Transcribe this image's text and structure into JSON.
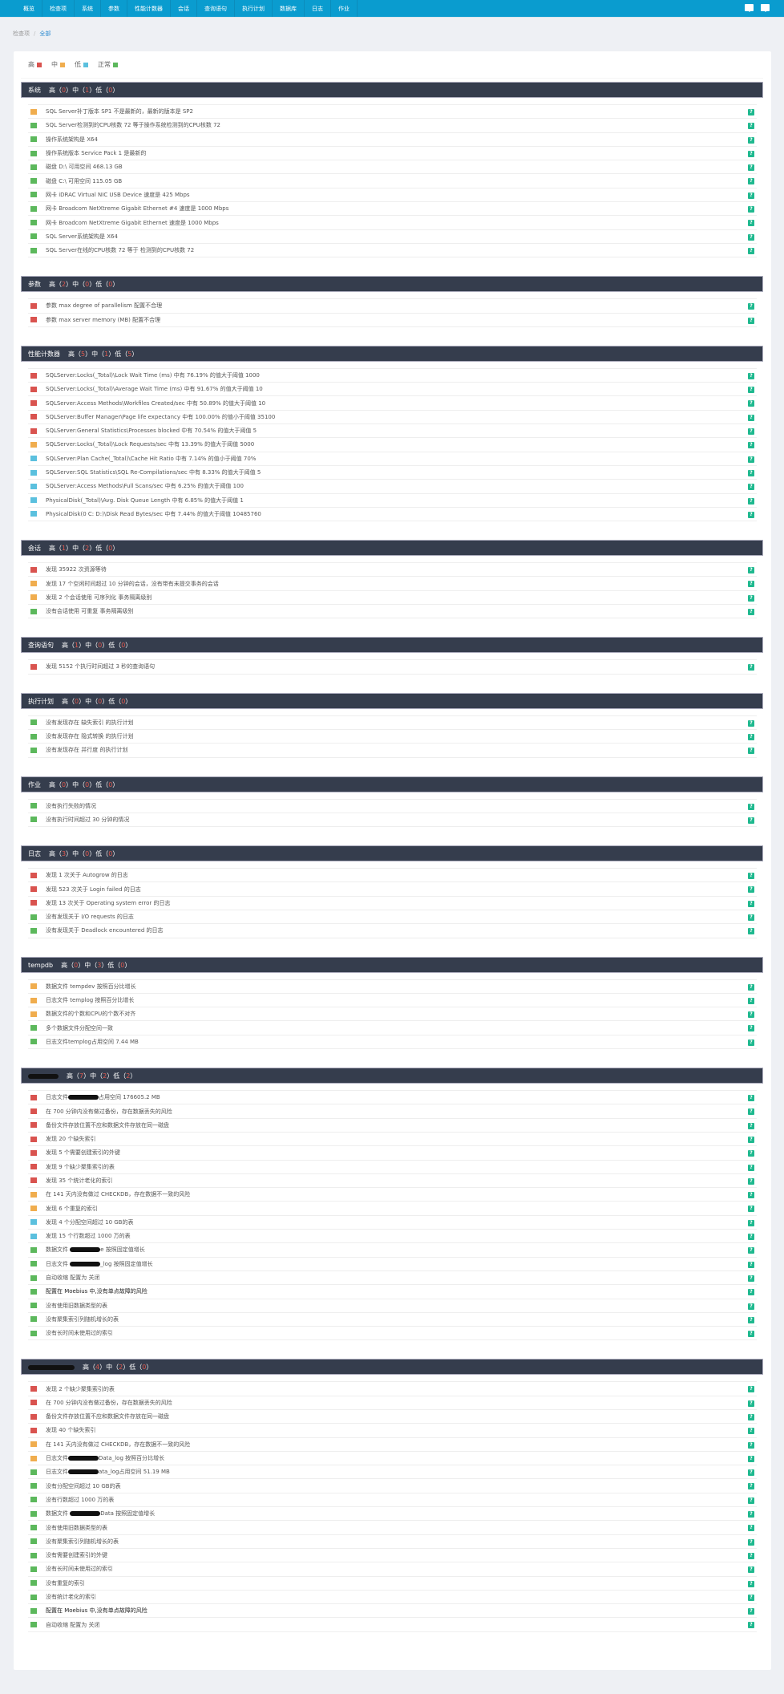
{
  "nav": {
    "items": [
      "概览",
      "检查项",
      "系统",
      "参数",
      "性能计数器",
      "会话",
      "查询语句",
      "执行计划",
      "数据库",
      "日志",
      "作业"
    ],
    "icons": [
      "message-icon",
      "monitor-icon"
    ]
  },
  "breadcrumb": {
    "parent": "检查项",
    "separator": "/",
    "current": "全部"
  },
  "levels": {
    "high": "高",
    "mid": "中",
    "low": "低",
    "ok": "正常"
  },
  "colors": {
    "high": "#d9534f",
    "mid": "#f0ad4e",
    "low": "#5bc0de",
    "ok": "#5cb85c",
    "nav": "#0a9ccf",
    "header": "#353d4d",
    "help": "#1fb98f"
  },
  "help_label": "?",
  "sections": [
    {
      "title": "系统",
      "counts": [
        0,
        1,
        0
      ],
      "items": [
        {
          "level": "mid",
          "text": "SQL Server补丁版本 SP1 不是最新的，最新的版本是 SP2"
        },
        {
          "level": "ok",
          "text": "SQL Server检测到的CPU核数 72 等于操作系统检测到的CPU核数 72"
        },
        {
          "level": "ok",
          "text": "操作系统架构是 X64"
        },
        {
          "level": "ok",
          "text": "操作系统版本 Service Pack 1 是最新的"
        },
        {
          "level": "ok",
          "text": "磁盘 D:\\ 可用空间 468.13 GB"
        },
        {
          "level": "ok",
          "text": "磁盘 C:\\ 可用空间 115.05 GB"
        },
        {
          "level": "ok",
          "text": "网卡 iDRAC Virtual NIC USB Device 速度是 425 Mbps"
        },
        {
          "level": "ok",
          "text": "网卡 Broadcom NetXtreme Gigabit Ethernet #4 速度是 1000 Mbps"
        },
        {
          "level": "ok",
          "text": "网卡 Broadcom NetXtreme Gigabit Ethernet 速度是 1000 Mbps"
        },
        {
          "level": "ok",
          "text": "SQL Server系统架构是 X64"
        },
        {
          "level": "ok",
          "text": "SQL Server在线的CPU核数 72 等于 检测到的CPU核数 72"
        }
      ]
    },
    {
      "title": "参数",
      "counts": [
        2,
        0,
        0
      ],
      "items": [
        {
          "level": "high",
          "text": "参数 max degree of parallelism 配置不合理"
        },
        {
          "level": "high",
          "text": "参数 max server memory (MB) 配置不合理"
        }
      ]
    },
    {
      "title": "性能计数器",
      "counts": [
        5,
        1,
        5
      ],
      "items": [
        {
          "level": "high",
          "text": "SQLServer:Locks(_Total)\\Lock Wait Time (ms) 中有 76.19% 的值大于阈值 1000"
        },
        {
          "level": "high",
          "text": "SQLServer:Locks(_Total)\\Average Wait Time (ms) 中有 91.67% 的值大于阈值 10"
        },
        {
          "level": "high",
          "text": "SQLServer:Access Methods\\Workfiles Created/sec 中有 50.89% 的值大于阈值 10"
        },
        {
          "level": "high",
          "text": "SQLServer:Buffer Manager\\Page life expectancy 中有 100.00% 的值小于阈值 35100"
        },
        {
          "level": "high",
          "text": "SQLServer:General Statistics\\Processes blocked 中有 70.54% 的值大于阈值 5"
        },
        {
          "level": "mid",
          "text": "SQLServer:Locks(_Total)\\Lock Requests/sec 中有 13.39% 的值大于阈值 5000"
        },
        {
          "level": "low",
          "text": "SQLServer:Plan Cache(_Total)\\Cache Hit Ratio 中有 7.14% 的值小于阈值 70%"
        },
        {
          "level": "low",
          "text": "SQLServer:SQL Statistics\\SQL Re-Compilations/sec 中有 8.33% 的值大于阈值 5"
        },
        {
          "level": "low",
          "text": "SQLServer:Access Methods\\Full Scans/sec 中有 6.25% 的值大于阈值 100"
        },
        {
          "level": "low",
          "text": "PhysicalDisk(_Total)\\Avg. Disk Queue Length 中有 6.85% 的值大于阈值 1"
        },
        {
          "level": "low",
          "text": "PhysicalDisk(0 C: D:)\\Disk Read Bytes/sec 中有 7.44% 的值大于阈值 10485760"
        }
      ]
    },
    {
      "title": "会话",
      "counts": [
        1,
        2,
        0
      ],
      "items": [
        {
          "level": "high",
          "text": "发现 35922 次资源等待"
        },
        {
          "level": "mid",
          "text": "发现 17 个空闲时间超过 10 分钟的会话，没有带有未提交事务的会话"
        },
        {
          "level": "mid",
          "text": "发现 2 个会话使用 可序列化 事务隔离级别"
        },
        {
          "level": "ok",
          "text": "没有会话使用 可重复 事务隔离级别"
        }
      ]
    },
    {
      "title": "查询语句",
      "counts": [
        1,
        0,
        0
      ],
      "items": [
        {
          "level": "high",
          "text": "发现 5152 个执行时间超过 3 秒的查询语句"
        }
      ]
    },
    {
      "title": "执行计划",
      "counts": [
        0,
        0,
        0
      ],
      "items": [
        {
          "level": "ok",
          "text": "没有发现存在 缺失索引 的执行计划"
        },
        {
          "level": "ok",
          "text": "没有发现存在 隐式转换 的执行计划"
        },
        {
          "level": "ok",
          "text": "没有发现存在 并行度 的执行计划"
        }
      ]
    },
    {
      "title": "作业",
      "counts": [
        0,
        0,
        0
      ],
      "items": [
        {
          "level": "ok",
          "text": "没有执行失败的情况"
        },
        {
          "level": "ok",
          "text": "没有执行时间超过 30 分钟的情况"
        }
      ]
    },
    {
      "title": "日志",
      "counts": [
        3,
        0,
        0
      ],
      "items": [
        {
          "level": "high",
          "text": "发现 1 次关于 Autogrow 的日志"
        },
        {
          "level": "high",
          "text": "发现 523 次关于 Login failed 的日志"
        },
        {
          "level": "high",
          "text": "发现 13 次关于 Operating system error 的日志"
        },
        {
          "level": "ok",
          "text": "没有发现关于 I/O requests 的日志"
        },
        {
          "level": "ok",
          "text": "没有发现关于 Deadlock encountered 的日志"
        }
      ]
    },
    {
      "title": "tempdb",
      "counts": [
        0,
        3,
        0
      ],
      "items": [
        {
          "level": "mid",
          "text": "数据文件 tempdev 按照百分比增长"
        },
        {
          "level": "mid",
          "text": "日志文件 templog 按照百分比增长"
        },
        {
          "level": "mid",
          "text": "数据文件的个数和CPU的个数不对齐"
        },
        {
          "level": "ok",
          "text": "多个数据文件分配空间一致"
        },
        {
          "level": "ok",
          "text": "日志文件templog占用空间 7.44 MB"
        }
      ]
    },
    {
      "title": "",
      "redacted_title": true,
      "counts": [
        7,
        2,
        2
      ],
      "items": [
        {
          "level": "high",
          "text": "日志文件",
          "redacted": true,
          "post": "占用空间 176605.2 MB"
        },
        {
          "level": "high",
          "text": "在 700 分钟内没有做过备份，存在数据丢失的风险"
        },
        {
          "level": "high",
          "text": "备份文件存放位置不应和数据文件存放在同一磁盘"
        },
        {
          "level": "high",
          "text": "发现 20 个缺失索引"
        },
        {
          "level": "high",
          "text": "发现 5 个需要创建索引的外键"
        },
        {
          "level": "high",
          "text": "发现 9 个缺少聚集索引的表"
        },
        {
          "level": "high",
          "text": "发现 35 个统计老化的索引"
        },
        {
          "level": "mid",
          "text": "在 141 天内没有做过 CHECKDB，存在数据不一致的风险"
        },
        {
          "level": "mid",
          "text": "发现 6 个重复的索引"
        },
        {
          "level": "low",
          "text": "发现 4 个分配空间超过 10 GB的表"
        },
        {
          "level": "low",
          "text": "发现 15 个行数超过 1000 万的表"
        },
        {
          "level": "ok",
          "text": "数据文件 ",
          "redacted": true,
          "post": "e 按照固定值增长"
        },
        {
          "level": "ok",
          "text": "日志文件 ",
          "redacted": true,
          "post": "_log 按照固定值增长"
        },
        {
          "level": "ok",
          "text": "自动收缩 配置为 关闭"
        },
        {
          "level": "ok",
          "text": "配置在 Moebius 中,没有单点故障的风险",
          "dark": true
        },
        {
          "level": "ok",
          "text": "没有使用旧数据类型的表"
        },
        {
          "level": "ok",
          "text": "没有聚集索引列随机增长的表"
        },
        {
          "level": "ok",
          "text": "没有长时间未使用过的索引"
        }
      ]
    },
    {
      "title": "",
      "redacted_title": true,
      "counts": [
        4,
        2,
        0
      ],
      "items": [
        {
          "level": "high",
          "text": "发现 2 个缺少聚集索引的表"
        },
        {
          "level": "high",
          "text": "在 700 分钟内没有做过备份，存在数据丢失的风险"
        },
        {
          "level": "high",
          "text": "备份文件存放位置不应和数据文件存放在同一磁盘"
        },
        {
          "level": "high",
          "text": "发现 40 个缺失索引"
        },
        {
          "level": "mid",
          "text": "在 141 天内没有做过 CHECKDB，存在数据不一致的风险"
        },
        {
          "level": "mid",
          "text": "日志文件",
          "redacted": true,
          "post": "Data_log 按照百分比增长"
        },
        {
          "level": "ok",
          "text": "日志文件",
          "redacted": true,
          "post": "ata_log占用空间 51.19 MB"
        },
        {
          "level": "ok",
          "text": "没有分配空间超过 10 GB的表"
        },
        {
          "level": "ok",
          "text": "没有行数超过 1000 万的表"
        },
        {
          "level": "ok",
          "text": "数据文件 ",
          "redacted": true,
          "post": "Data 按照固定值增长"
        },
        {
          "level": "ok",
          "text": "没有使用旧数据类型的表"
        },
        {
          "level": "ok",
          "text": "没有聚集索引列随机增长的表"
        },
        {
          "level": "ok",
          "text": "没有需要创建索引的外键"
        },
        {
          "level": "ok",
          "text": "没有长时间未使用过的索引"
        },
        {
          "level": "ok",
          "text": "没有重复的索引"
        },
        {
          "level": "ok",
          "text": "没有统计老化的索引"
        },
        {
          "level": "ok",
          "text": "配置在 Moebius 中,没有单点故障的风险",
          "dark": true
        },
        {
          "level": "ok",
          "text": "自动收缩 配置为 关闭"
        }
      ]
    }
  ]
}
